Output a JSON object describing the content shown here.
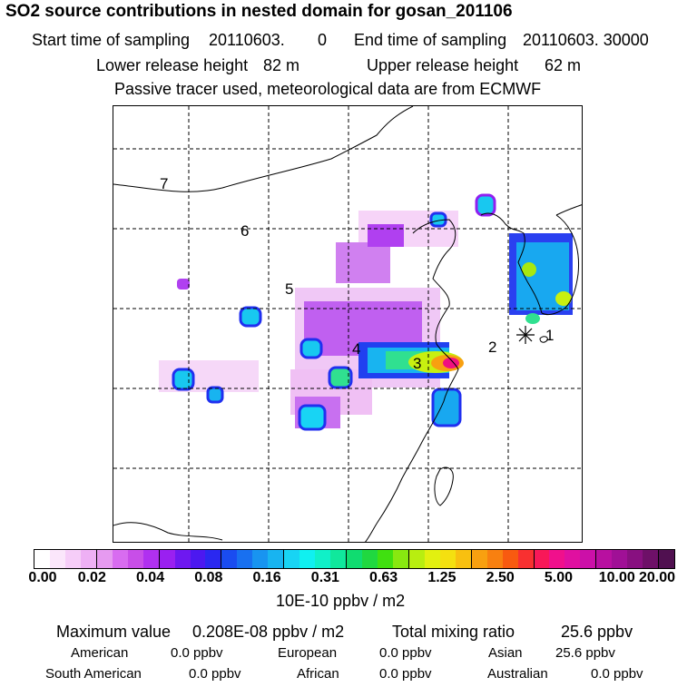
{
  "title": "SO2 source contributions in nested domain for gosan_201106",
  "sampling": {
    "start_label": "Start time of sampling",
    "start_value": "20110603.",
    "start_hour": "0",
    "end_label": "End time of sampling",
    "end_value": "20110603. 30000"
  },
  "release": {
    "lower_label": "Lower release height",
    "lower_value": "82 m",
    "upper_label": "Upper release height",
    "upper_value": "62 m"
  },
  "note": "Passive tracer used, meteorological data are from ECMWF",
  "map_labels": [
    {
      "id": "1",
      "text": "1"
    },
    {
      "id": "2",
      "text": "2"
    },
    {
      "id": "3",
      "text": "3"
    },
    {
      "id": "4",
      "text": "4"
    },
    {
      "id": "5",
      "text": "5"
    },
    {
      "id": "6",
      "text": "6"
    },
    {
      "id": "7",
      "text": "7"
    }
  ],
  "colorbar": {
    "ticks": [
      "0.00",
      "0.02",
      "0.04",
      "0.08",
      "0.16",
      "0.31",
      "0.63",
      "1.25",
      "2.50",
      "5.00",
      "10.00",
      "20.00"
    ],
    "colors": [
      "#ffffff",
      "#fbe6fb",
      "#f6cdf8",
      "#eeb0f5",
      "#e69af0",
      "#d86cf0",
      "#c84ee8",
      "#b030f0",
      "#9a20f0",
      "#6e18f0",
      "#4c18f0",
      "#2a28f0",
      "#1a4cf0",
      "#1870f0",
      "#1894f0",
      "#18b4f0",
      "#18d4f4",
      "#10f0f0",
      "#10f0c8",
      "#10e89c",
      "#10dc70",
      "#20d840",
      "#40e010",
      "#88e810",
      "#b8ee10",
      "#e2f010",
      "#f4e010",
      "#f8c010",
      "#f8a010",
      "#f88010",
      "#f85a10",
      "#f83030",
      "#f81858",
      "#f0108c",
      "#e010a0",
      "#cc10a8",
      "#b810a0",
      "#a01096",
      "#881080",
      "#6e1068",
      "#501050"
    ],
    "unit": "10E-10 ppbv / m2"
  },
  "stats": {
    "max_label": "Maximum value",
    "max_value": "0.208E-08 ppbv / m2",
    "total_label": "Total mixing ratio",
    "total_value": "25.6 ppbv"
  },
  "regions": {
    "american_label": "American",
    "american_value": "0.0 ppbv",
    "european_label": "European",
    "european_value": "0.0 ppbv",
    "asian_label": "Asian",
    "asian_value": "25.6 ppbv",
    "south_american_label": "South American",
    "south_american_value": "0.0 ppbv",
    "african_label": "African",
    "african_value": "0.0 ppbv",
    "australian_label": "Australian",
    "australian_value": "0.0 ppbv"
  }
}
